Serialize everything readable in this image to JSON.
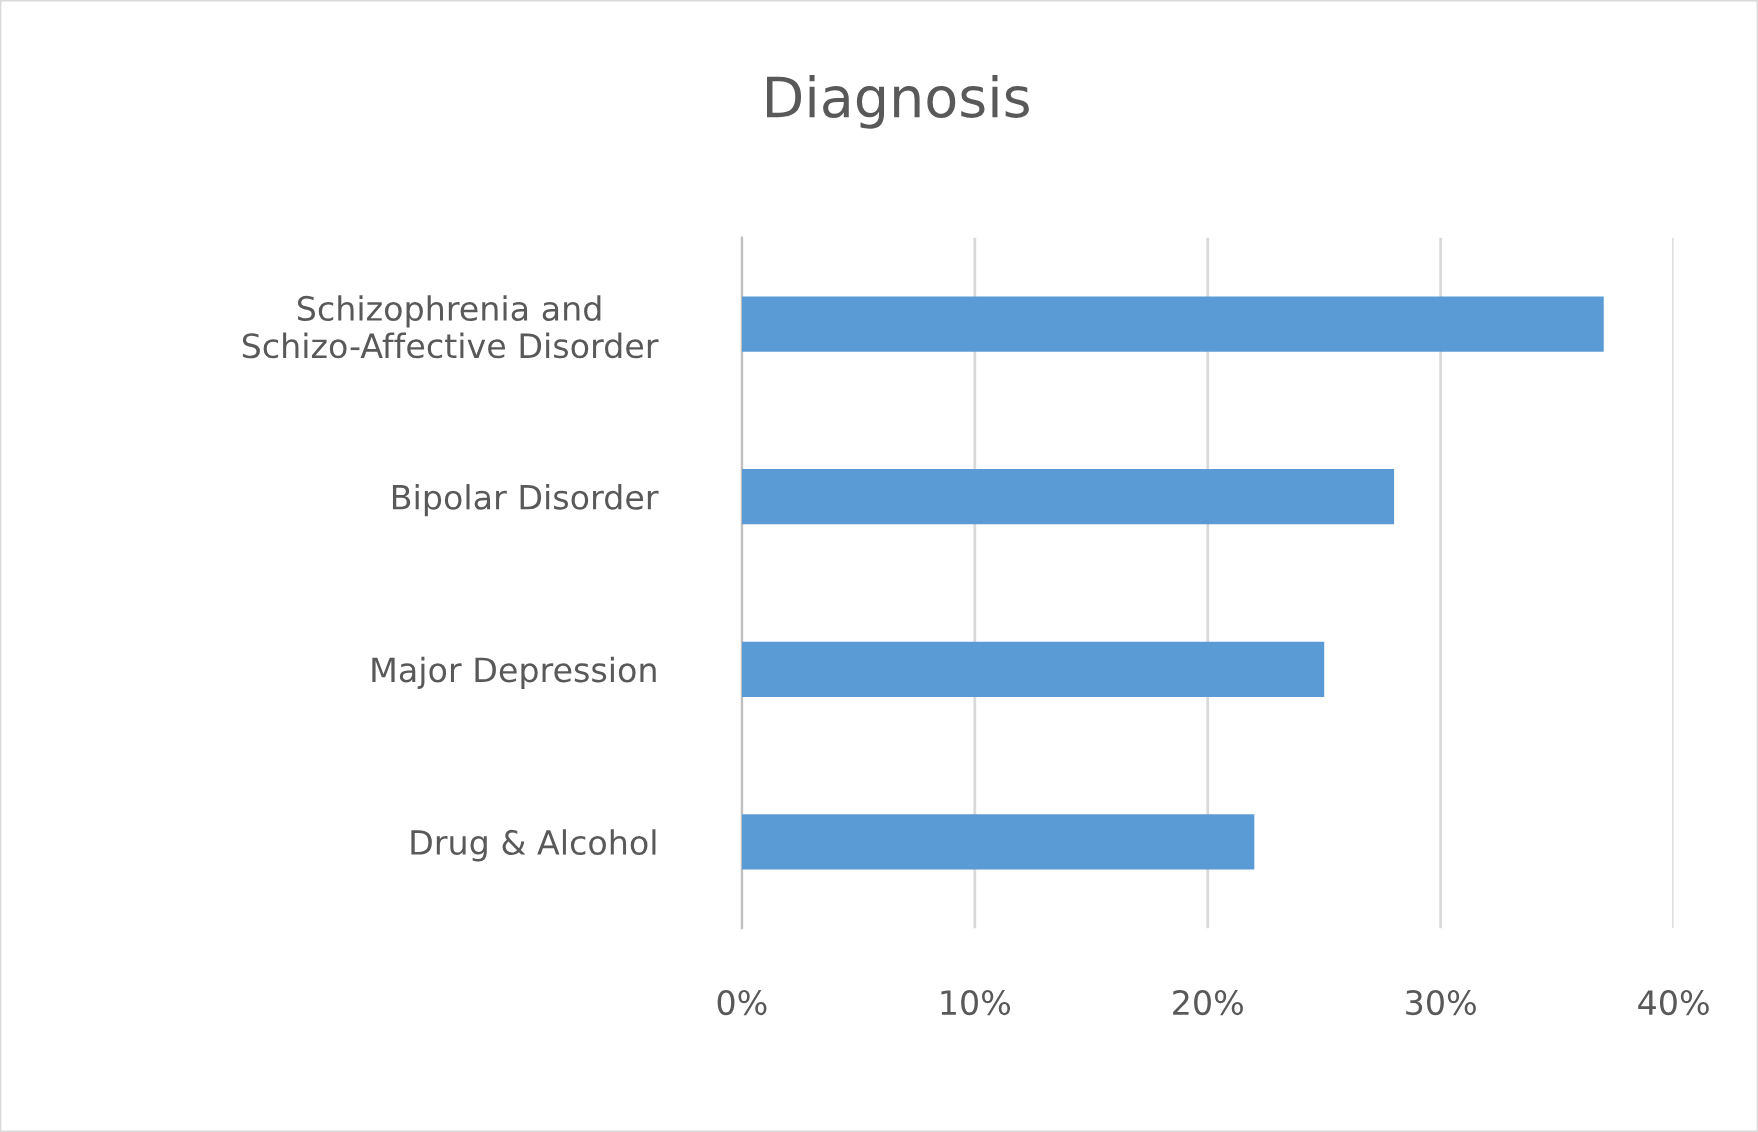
{
  "chart_data": {
    "type": "bar",
    "orientation": "horizontal",
    "title": "Diagnosis",
    "categories": [
      "Schizophrenia and\nSchizo-Affective Disorder",
      "Bipolar Disorder",
      "Major Depression",
      "Drug & Alcohol"
    ],
    "values": [
      37,
      28,
      25,
      22
    ],
    "color": "#5b9bd5",
    "xlim": [
      0,
      40
    ],
    "xticks": [
      {
        "value": 0,
        "label": "0%"
      },
      {
        "value": 10,
        "label": "10%"
      },
      {
        "value": 20,
        "label": "20%"
      },
      {
        "value": 30,
        "label": "30%"
      },
      {
        "value": 40,
        "label": "40%"
      }
    ],
    "grid": "x",
    "legend": false
  }
}
